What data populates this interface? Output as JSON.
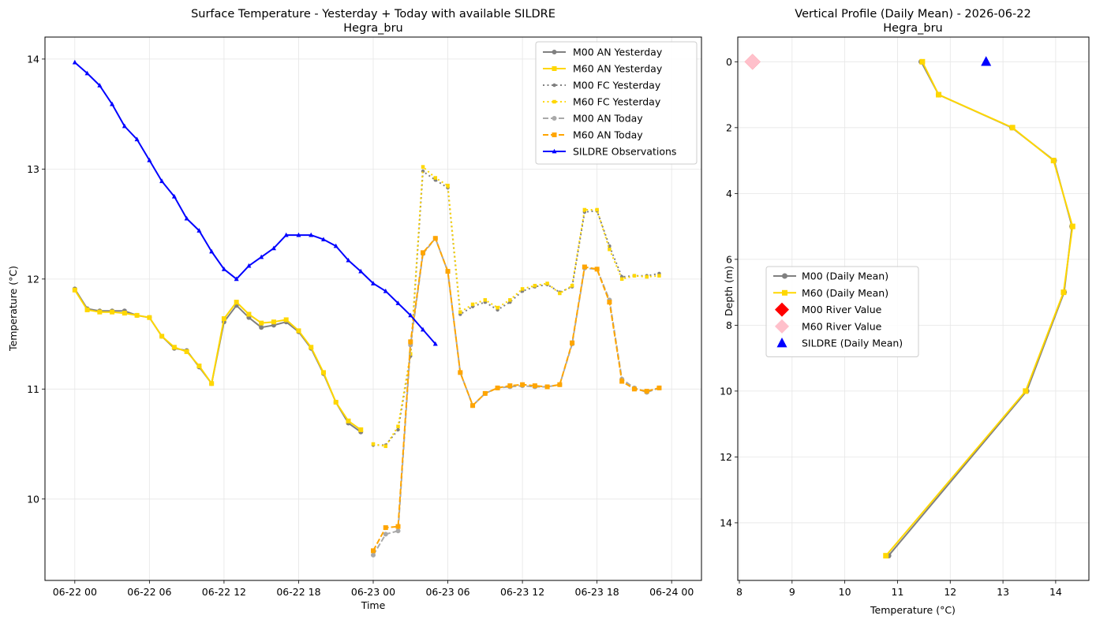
{
  "chart_data": [
    {
      "type": "line",
      "title": "Surface Temperature - Yesterday + Today with available SILDRE",
      "subtitle": "Hegra_bru",
      "xlabel": "Time",
      "ylabel": "Temperature (°C)",
      "x_ticks": [
        {
          "h": 0,
          "label": "06-22 00"
        },
        {
          "h": 6,
          "label": "06-22 06"
        },
        {
          "h": 12,
          "label": "06-22 12"
        },
        {
          "h": 18,
          "label": "06-22 18"
        },
        {
          "h": 24,
          "label": "06-23 00"
        },
        {
          "h": 30,
          "label": "06-23 06"
        },
        {
          "h": 36,
          "label": "06-23 12"
        },
        {
          "h": 42,
          "label": "06-23 18"
        },
        {
          "h": 48,
          "label": "06-24 00"
        }
      ],
      "y_ticks": [
        10,
        11,
        12,
        13,
        14
      ],
      "xlim_hours": [
        -2.4,
        50.4
      ],
      "ylim": [
        9.26,
        14.2
      ],
      "grid": true,
      "legend_position": "upper right",
      "series": [
        {
          "name": "M00 AN Yesterday",
          "color": "#808080",
          "dash": "solid",
          "marker": "circle",
          "x": [
            0,
            1,
            2,
            3,
            4,
            5,
            6,
            7,
            8,
            9,
            10,
            11,
            12,
            13,
            14,
            15,
            16,
            17,
            18,
            19,
            20,
            21,
            22,
            23
          ],
          "y": [
            11.91,
            11.73,
            11.71,
            11.71,
            11.71,
            11.67,
            11.65,
            11.48,
            11.37,
            11.35,
            11.2,
            11.05,
            11.61,
            11.76,
            11.65,
            11.56,
            11.58,
            11.61,
            11.52,
            11.37,
            11.14,
            10.88,
            10.69,
            10.61
          ]
        },
        {
          "name": "M60 AN Yesterday",
          "color": "#ffd700",
          "dash": "solid",
          "marker": "square",
          "x": [
            0,
            1,
            2,
            3,
            4,
            5,
            6,
            7,
            8,
            9,
            10,
            11,
            12,
            13,
            14,
            15,
            16,
            17,
            18,
            19,
            20,
            21,
            22,
            23
          ],
          "y": [
            11.9,
            11.72,
            11.7,
            11.7,
            11.69,
            11.67,
            11.65,
            11.48,
            11.38,
            11.34,
            11.21,
            11.05,
            11.64,
            11.79,
            11.68,
            11.6,
            11.61,
            11.63,
            11.53,
            11.38,
            11.15,
            10.88,
            10.71,
            10.63
          ]
        },
        {
          "name": "M00 FC Yesterday",
          "color": "#808080",
          "dash": "dotted",
          "marker": "circle",
          "x": [
            24,
            25,
            26,
            27,
            28,
            29,
            30,
            31,
            32,
            33,
            34,
            35,
            36,
            37,
            38,
            39,
            40,
            41,
            42,
            43,
            44,
            45,
            46,
            47
          ],
          "y": [
            10.49,
            10.49,
            10.63,
            11.3,
            12.98,
            12.9,
            12.83,
            11.68,
            11.75,
            11.79,
            11.72,
            11.79,
            11.89,
            11.93,
            11.95,
            11.88,
            11.93,
            12.61,
            12.62,
            12.3,
            12.02,
            12.03,
            12.03,
            12.05
          ]
        },
        {
          "name": "M60 FC Yesterday",
          "color": "#ffd700",
          "dash": "dotted",
          "marker": "square",
          "x": [
            24,
            25,
            26,
            27,
            28,
            29,
            30,
            31,
            32,
            33,
            34,
            35,
            36,
            37,
            38,
            39,
            40,
            41,
            42,
            43,
            44,
            45,
            46,
            47
          ],
          "y": [
            10.5,
            10.48,
            10.66,
            11.32,
            13.02,
            12.92,
            12.85,
            11.7,
            11.77,
            11.81,
            11.74,
            11.81,
            11.91,
            11.94,
            11.96,
            11.87,
            11.94,
            12.63,
            12.63,
            12.27,
            12.0,
            12.03,
            12.02,
            12.03
          ]
        },
        {
          "name": "M00 AN Today",
          "color": "#a9a9a9",
          "dash": "dashed",
          "marker": "circle",
          "x": [
            24,
            25,
            26,
            27,
            28,
            29,
            30,
            31,
            32,
            33,
            34,
            35,
            36,
            37,
            38,
            39,
            40,
            41,
            42,
            43,
            44,
            45,
            46,
            47
          ],
          "y": [
            9.49,
            9.68,
            9.71,
            11.4,
            12.23,
            12.37,
            12.07,
            11.15,
            10.85,
            10.96,
            11.01,
            11.02,
            11.03,
            11.02,
            11.02,
            11.04,
            11.41,
            12.1,
            12.09,
            11.81,
            11.09,
            11.01,
            10.97,
            11.01
          ]
        },
        {
          "name": "M60 AN Today",
          "color": "#ffa500",
          "dash": "dashed",
          "marker": "square",
          "x": [
            24,
            25,
            26,
            27,
            28,
            29,
            30,
            31,
            32,
            33,
            34,
            35,
            36,
            37,
            38,
            39,
            40,
            41,
            42,
            43,
            44,
            45,
            46,
            47
          ],
          "y": [
            9.53,
            9.74,
            9.75,
            11.43,
            12.24,
            12.37,
            12.07,
            11.15,
            10.85,
            10.96,
            11.01,
            11.03,
            11.04,
            11.03,
            11.02,
            11.04,
            11.42,
            12.11,
            12.09,
            11.79,
            11.07,
            11.0,
            10.98,
            11.01
          ]
        },
        {
          "name": "SILDRE Observations",
          "color": "#0000ff",
          "dash": "solid",
          "marker": "triangle",
          "x": [
            0,
            1,
            2,
            3,
            4,
            5,
            6,
            7,
            8,
            9,
            10,
            11,
            12,
            13,
            14,
            15,
            16,
            17,
            18,
            19,
            20,
            21,
            22,
            23,
            24,
            25,
            26,
            27,
            28,
            29
          ],
          "y": [
            13.97,
            13.87,
            13.76,
            13.59,
            13.39,
            13.27,
            13.08,
            12.89,
            12.75,
            12.55,
            12.44,
            12.25,
            12.09,
            12.0,
            12.12,
            12.2,
            12.28,
            12.4,
            12.4,
            12.4,
            12.36,
            12.3,
            12.17,
            12.07,
            11.96,
            11.89,
            11.78,
            11.67,
            11.54,
            11.41
          ]
        }
      ]
    },
    {
      "type": "line",
      "title": "Vertical Profile (Daily Mean) - 2026-06-22",
      "subtitle": "Hegra_bru",
      "xlabel": "Temperature (°C)",
      "ylabel": "Depth (m)",
      "x_ticks": [
        8,
        9,
        10,
        11,
        12,
        13,
        14
      ],
      "y_ticks": [
        0,
        2,
        4,
        6,
        8,
        10,
        12,
        14
      ],
      "xlim": [
        7.97,
        14.63
      ],
      "ylim_inverted": [
        -0.75,
        15.75
      ],
      "grid": true,
      "legend_position": "center left",
      "series": [
        {
          "name": "M00 (Daily Mean)",
          "color": "#808080",
          "dash": "solid",
          "marker": "circle",
          "depth": [
            0,
            1,
            2,
            3,
            5,
            7,
            10,
            15
          ],
          "temp": [
            11.45,
            11.78,
            13.17,
            13.97,
            14.31,
            14.16,
            13.45,
            10.83
          ]
        },
        {
          "name": "M60 (Daily Mean)",
          "color": "#ffd700",
          "dash": "solid",
          "marker": "square",
          "depth": [
            0,
            1,
            2,
            3,
            5,
            7,
            10,
            15
          ],
          "temp": [
            11.47,
            11.78,
            13.18,
            13.96,
            14.32,
            14.15,
            13.43,
            10.78
          ]
        }
      ],
      "points": [
        {
          "name": "M00 River Value",
          "color": "#ff0000",
          "marker": "diamond",
          "temp": 8.25,
          "depth": 0
        },
        {
          "name": "M60 River Value",
          "color": "#ffc0cb",
          "marker": "diamond",
          "temp": 8.25,
          "depth": 0
        },
        {
          "name": "SILDRE (Daily Mean)",
          "color": "#0000ff",
          "marker": "triangle",
          "temp": 12.68,
          "depth": 0
        }
      ]
    }
  ]
}
